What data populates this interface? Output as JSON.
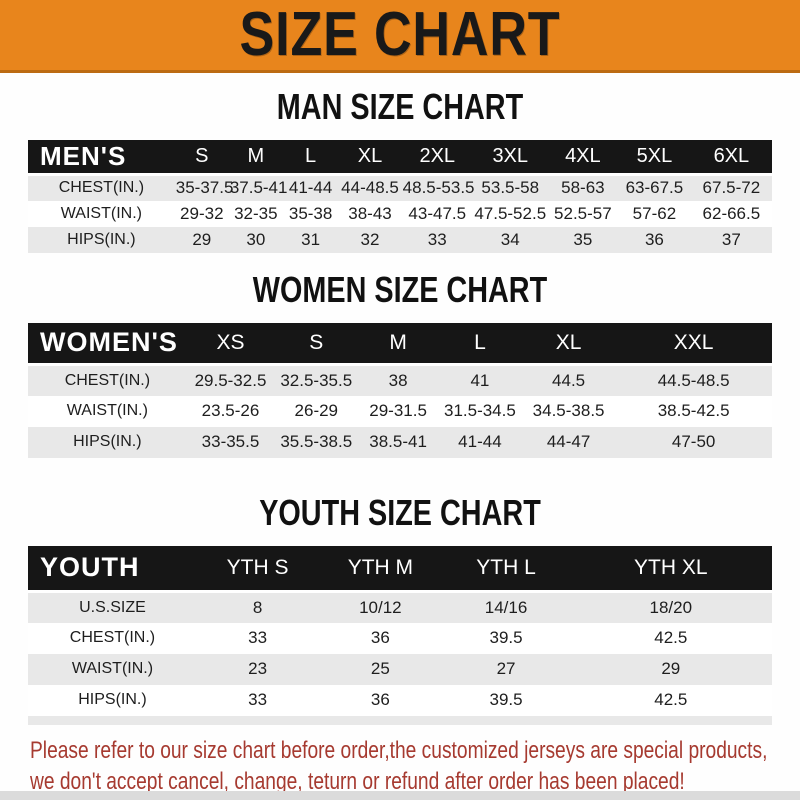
{
  "banner": {
    "title": "SIZE CHART"
  },
  "sections": [
    {
      "id": "man",
      "heading": "MAN SIZE CHART",
      "table": {
        "header": [
          "MEN'S",
          "S",
          "M",
          "L",
          "XL",
          "2XL",
          "3XL",
          "4XL",
          "5XL",
          "6XL"
        ],
        "rows": [
          [
            "CHEST(IN.)",
            "35-37.5",
            "37.5-41",
            "41-44",
            "44-48.5",
            "48.5-53.5",
            "53.5-58",
            "58-63",
            "63-67.5",
            "67.5-72"
          ],
          [
            "WAIST(IN.)",
            "29-32",
            "32-35",
            "35-38",
            "38-43",
            "43-47.5",
            "47.5-52.5",
            "52.5-57",
            "57-62",
            "62-66.5"
          ],
          [
            "HIPS(IN.)",
            "29",
            "30",
            "31",
            "32",
            "33",
            "34",
            "35",
            "36",
            "37"
          ]
        ]
      }
    },
    {
      "id": "women",
      "heading": "WOMEN SIZE CHART",
      "table": {
        "header": [
          "WOMEN'S",
          "XS",
          "S",
          "M",
          "L",
          "XL",
          "XXL"
        ],
        "rows": [
          [
            "CHEST(IN.)",
            "29.5-32.5",
            "32.5-35.5",
            "38",
            "41",
            "44.5",
            "44.5-48.5"
          ],
          [
            "WAIST(IN.)",
            "23.5-26",
            "26-29",
            "29-31.5",
            "31.5-34.5",
            "34.5-38.5",
            "38.5-42.5"
          ],
          [
            "HIPS(IN.)",
            "33-35.5",
            "35.5-38.5",
            "38.5-41",
            "41-44",
            "44-47",
            "47-50"
          ]
        ]
      }
    },
    {
      "id": "youth",
      "heading": "YOUTH SIZE CHART",
      "table": {
        "header": [
          "YOUTH",
          "YTH S",
          "YTH M",
          "YTH L",
          "YTH XL"
        ],
        "rows": [
          [
            "U.S.SIZE",
            "8",
            "10/12",
            "14/16",
            "18/20"
          ],
          [
            "CHEST(IN.)",
            "33",
            "36",
            "39.5",
            "42.5"
          ],
          [
            "WAIST(IN.)",
            "23",
            "25",
            "27",
            "29"
          ],
          [
            "HIPS(IN.)",
            "33",
            "36",
            "39.5",
            "42.5"
          ]
        ]
      }
    }
  ],
  "footer": {
    "line1": "Please refer to our size chart before order,the customized jerseys are special products,",
    "line2": "we don't accept cancel, change, teturn or refund after order has been placed!"
  },
  "colors": {
    "banner-bg": "#E8851C",
    "banner-border": "#BC6B12",
    "header-bar": "#161616",
    "header-text": "#FFFFFF",
    "row-alt": "#E8E8E8",
    "body-text": "#1E1E1E",
    "notice-text": "#A63A30",
    "bottom-strip": "#DBDBDB"
  }
}
